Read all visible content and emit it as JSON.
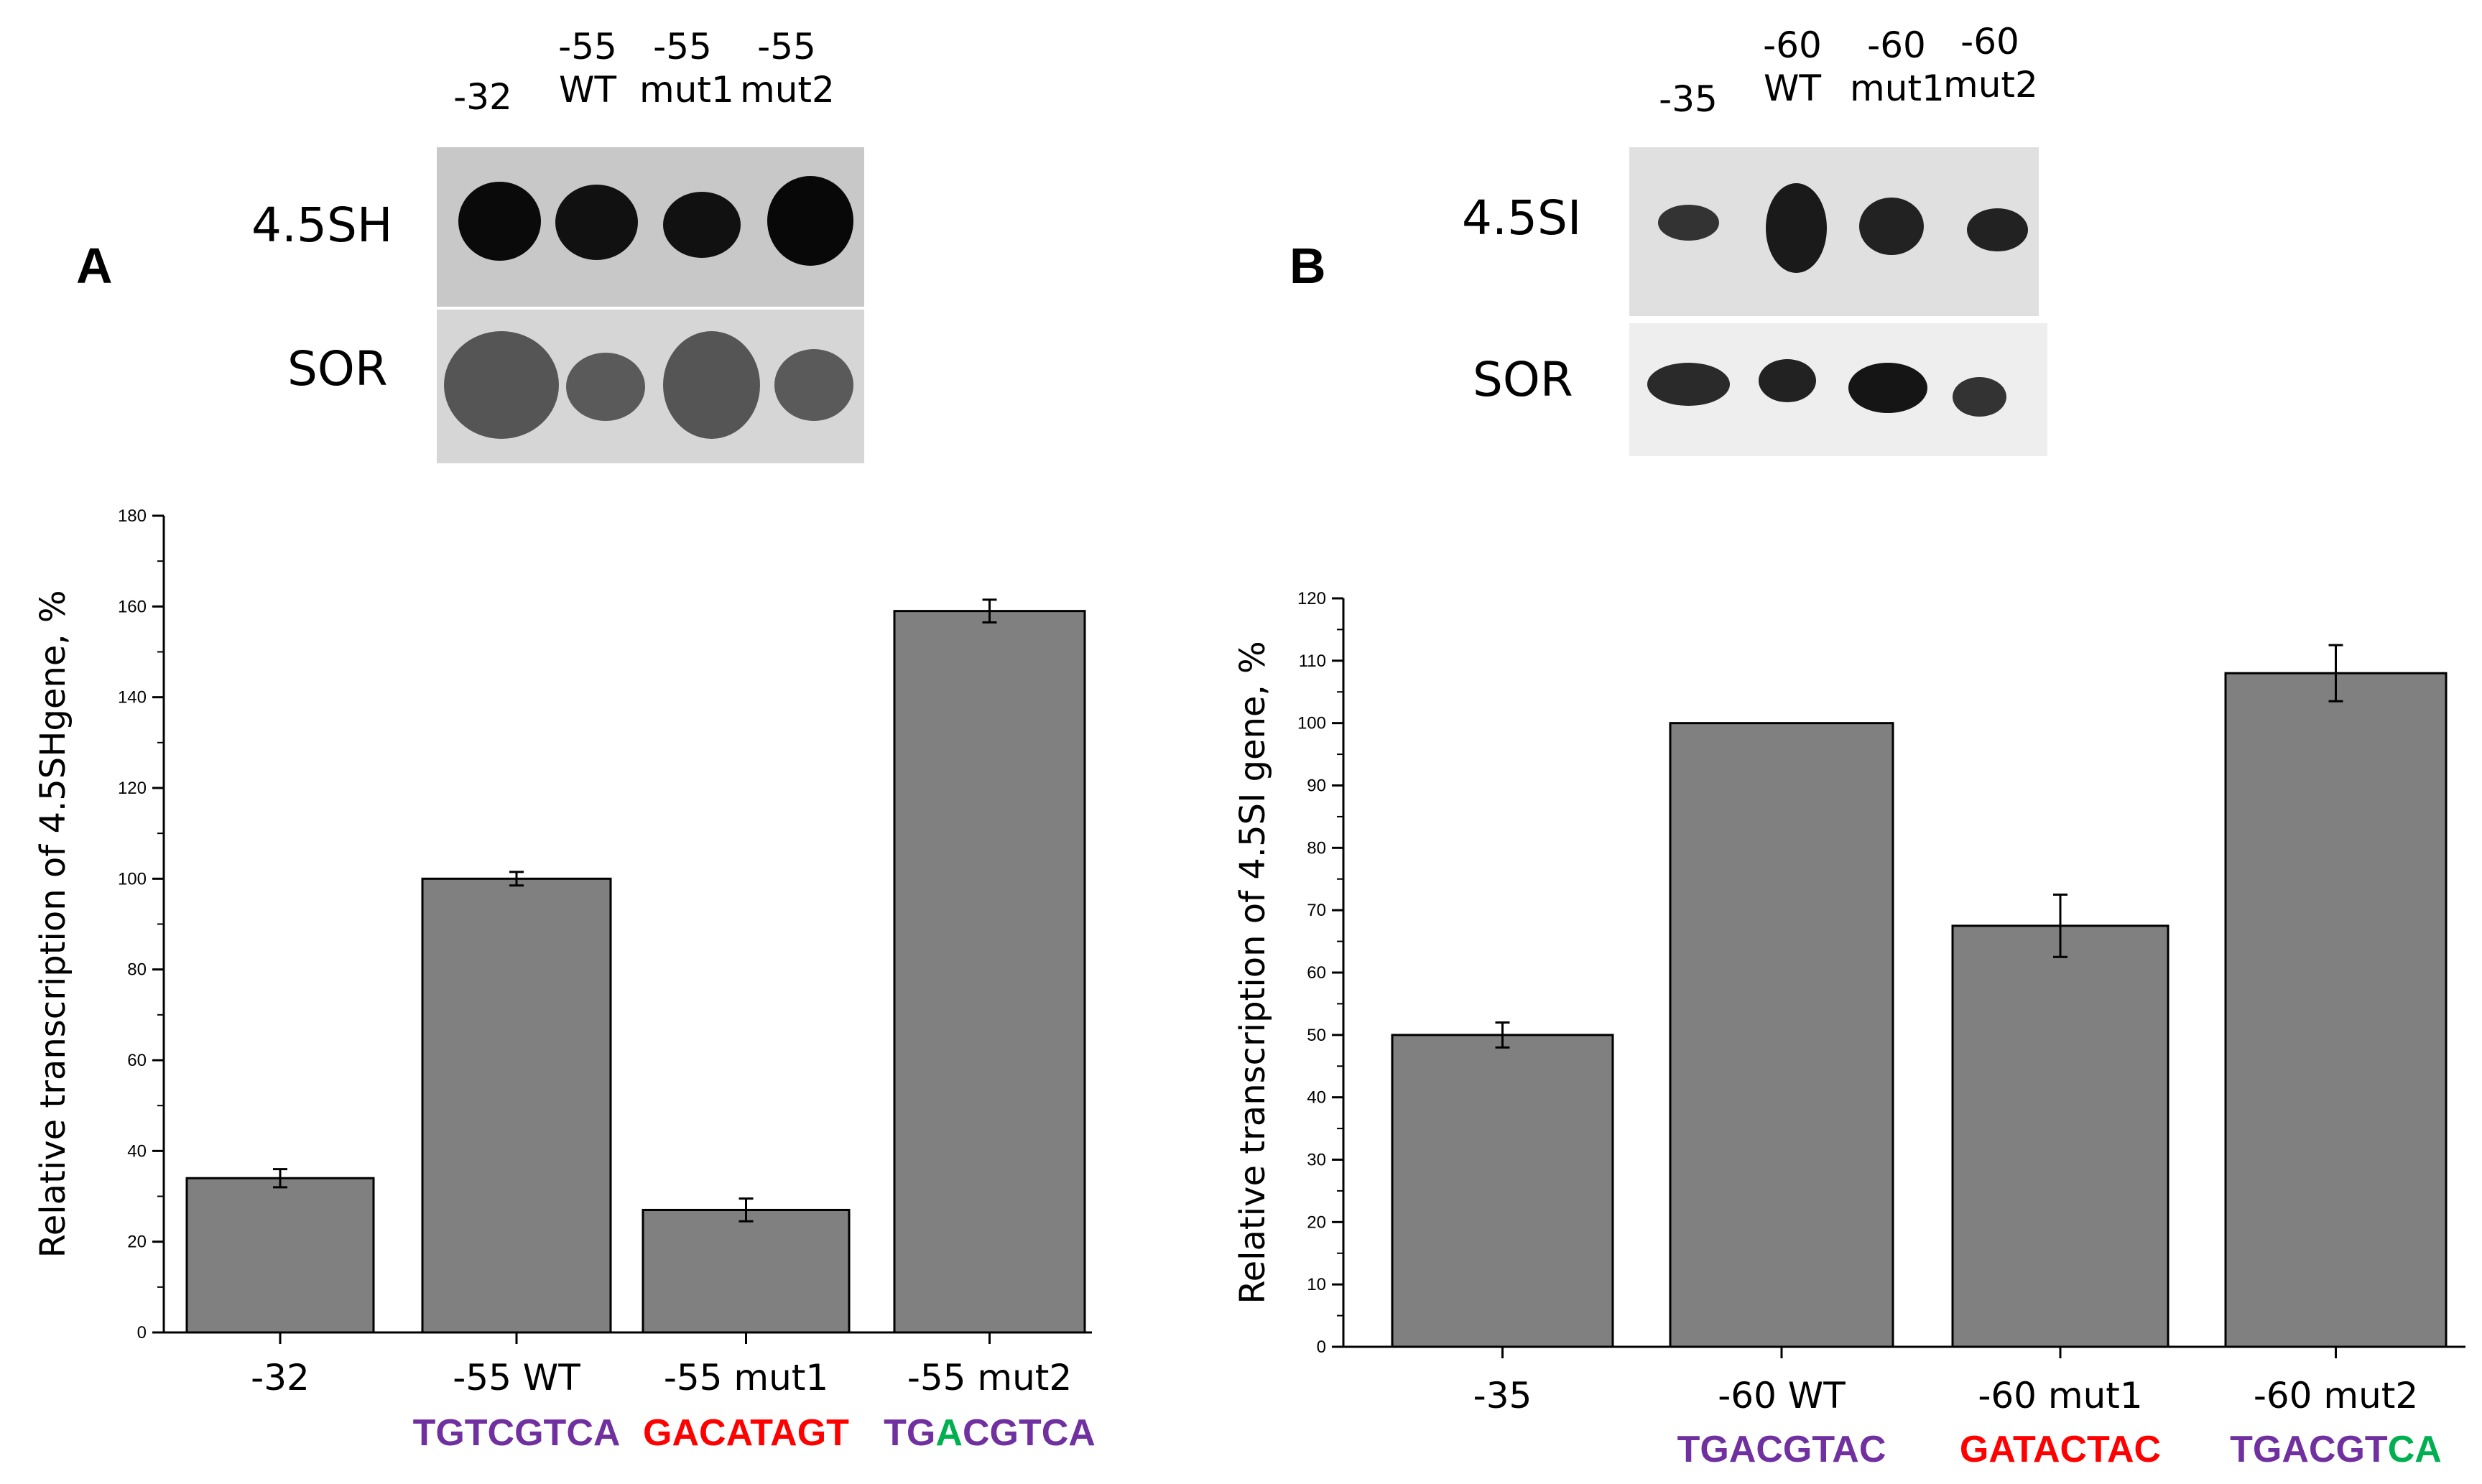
{
  "colors": {
    "bar": "#808080",
    "purple": "#7030a0",
    "red": "#ff0000",
    "green": "#00b050"
  },
  "panel_a": {
    "letter": "A",
    "lanes": [
      {
        "l1": "",
        "l2": "-32"
      },
      {
        "l1": "-55",
        "l2": "WT"
      },
      {
        "l1": "-55",
        "l2": "mut1"
      },
      {
        "l1": "-55",
        "l2": "mut2"
      }
    ],
    "row1_label": "4.5SH",
    "row2_label": "SOR"
  },
  "panel_b": {
    "letter": "B",
    "lanes": [
      {
        "l1": "",
        "l2": "-35"
      },
      {
        "l1": "-60",
        "l2": "WT"
      },
      {
        "l1": "-60",
        "l2": "mut1"
      },
      {
        "l1": "-60",
        "l2": "mut2"
      }
    ],
    "row1_label": "4.5SI",
    "row2_label": "SOR"
  },
  "chart_data": [
    {
      "type": "bar",
      "panel": "A",
      "ylabel": "Relative transcription of 4.5SHgene, %",
      "ylim": [
        0,
        180
      ],
      "yticks": [
        0,
        20,
        40,
        60,
        80,
        100,
        120,
        140,
        160,
        180
      ],
      "categories": [
        "-32",
        "-55 WT",
        "-55 mut1",
        "-55 mut2"
      ],
      "values": [
        34,
        100,
        27,
        159
      ],
      "errors": [
        2,
        1.5,
        2.5,
        2.5
      ],
      "sequences": [
        [],
        [
          {
            "text": "TGTCGTCA",
            "color": "purple"
          }
        ],
        [
          {
            "text": "GACATAGT",
            "color": "red"
          }
        ],
        [
          {
            "text": "TG",
            "color": "purple"
          },
          {
            "text": "A",
            "color": "green"
          },
          {
            "text": "CGTCA",
            "color": "purple"
          }
        ]
      ]
    },
    {
      "type": "bar",
      "panel": "B",
      "ylabel": "Relative transcription of 4.5SI gene, %",
      "ylim": [
        0,
        120
      ],
      "yticks": [
        0,
        10,
        20,
        30,
        40,
        50,
        60,
        70,
        80,
        90,
        100,
        110,
        120
      ],
      "categories": [
        "-35",
        "-60 WT",
        "-60 mut1",
        "-60 mut2"
      ],
      "values": [
        50,
        100,
        67.5,
        108
      ],
      "errors": [
        2,
        0,
        5,
        4.5
      ],
      "sequences": [
        [],
        [
          {
            "text": "TGACGTAC",
            "color": "purple"
          }
        ],
        [
          {
            "text": "GATACTAC",
            "color": "red"
          }
        ],
        [
          {
            "text": "TGACGT",
            "color": "purple"
          },
          {
            "text": "CA",
            "color": "green"
          }
        ]
      ]
    }
  ]
}
